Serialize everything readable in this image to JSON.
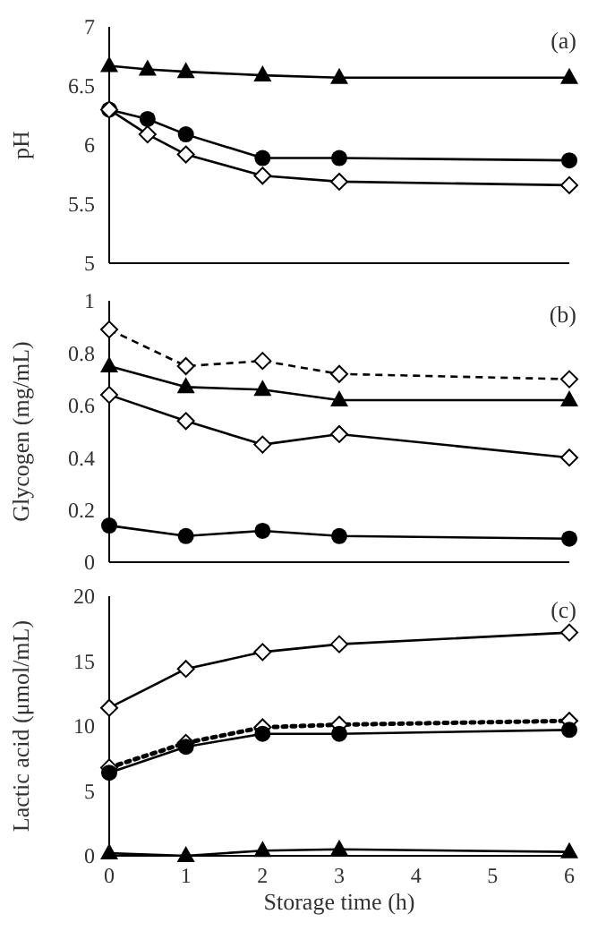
{
  "chart_data": [
    {
      "type": "line",
      "ylabel": "pH",
      "annotations": [
        "(a)"
      ],
      "xlim": [
        0,
        6
      ],
      "ylim": [
        5,
        7
      ],
      "yticks": [
        5,
        5.5,
        6,
        6.5,
        7
      ],
      "tick_labels": "y",
      "series": [
        {
          "color": "#000000",
          "marker": "triangle",
          "line_style": "solid",
          "x": [
            0,
            0.5,
            1,
            2,
            3,
            6
          ],
          "values": [
            6.67,
            6.64,
            6.62,
            6.59,
            6.57,
            6.57
          ]
        },
        {
          "color": "#000000",
          "marker": "circle",
          "line_style": "solid",
          "x": [
            0,
            0.5,
            1,
            2,
            3,
            6
          ],
          "values": [
            6.3,
            6.22,
            6.09,
            5.89,
            5.89,
            5.87
          ]
        },
        {
          "color": "#000000",
          "marker": "diamond",
          "line_style": "solid",
          "x": [
            0,
            0.5,
            1,
            2,
            3,
            6
          ],
          "values": [
            6.3,
            6.09,
            5.92,
            5.74,
            5.69,
            5.66
          ]
        }
      ]
    },
    {
      "type": "line",
      "ylabel": "Glycogen (mg/mL)",
      "annotations": [
        "(b)"
      ],
      "xlim": [
        0,
        6
      ],
      "ylim": [
        0,
        1
      ],
      "yticks": [
        0,
        0.2,
        0.4,
        0.6,
        0.8,
        1
      ],
      "tick_labels": "y",
      "series": [
        {
          "color": "#000000",
          "marker": "diamond",
          "line_style": "dashed",
          "x": [
            0,
            1,
            2,
            3,
            6
          ],
          "values": [
            0.89,
            0.75,
            0.77,
            0.72,
            0.7
          ]
        },
        {
          "color": "#000000",
          "marker": "triangle",
          "line_style": "solid",
          "x": [
            0,
            1,
            2,
            3,
            6
          ],
          "values": [
            0.75,
            0.67,
            0.66,
            0.62,
            0.62
          ]
        },
        {
          "color": "#000000",
          "marker": "diamond",
          "line_style": "solid",
          "x": [
            0,
            1,
            2,
            3,
            6
          ],
          "values": [
            0.64,
            0.54,
            0.45,
            0.49,
            0.4
          ]
        },
        {
          "color": "#000000",
          "marker": "circle",
          "line_style": "solid",
          "x": [
            0,
            1,
            2,
            3,
            6
          ],
          "values": [
            0.14,
            0.1,
            0.12,
            0.1,
            0.09
          ]
        }
      ]
    },
    {
      "type": "line",
      "ylabel": "Lactic acid (μmol/mL)",
      "xlabel": "Storage time (h)",
      "annotations": [
        "(c)"
      ],
      "xlim": [
        0,
        6
      ],
      "xticks": [
        0,
        1,
        2,
        3,
        4,
        5,
        6
      ],
      "ylim": [
        0,
        20
      ],
      "yticks": [
        0,
        5,
        10,
        15,
        20
      ],
      "series": [
        {
          "color": "#000000",
          "marker": "diamond",
          "line_style": "solid",
          "x": [
            0,
            1,
            2,
            3,
            6
          ],
          "values": [
            11.4,
            14.4,
            15.7,
            16.3,
            17.2
          ]
        },
        {
          "color": "#000000",
          "marker": "diamond",
          "line_style": "dotted",
          "x": [
            0,
            1,
            2,
            3,
            6
          ],
          "values": [
            6.8,
            8.7,
            9.9,
            10.1,
            10.4
          ]
        },
        {
          "color": "#000000",
          "marker": "circle",
          "line_style": "solid",
          "x": [
            0,
            1,
            2,
            3,
            6
          ],
          "values": [
            6.4,
            8.4,
            9.4,
            9.4,
            9.7
          ]
        },
        {
          "color": "#000000",
          "marker": "triangle",
          "line_style": "solid",
          "x": [
            0,
            1,
            2,
            3,
            6
          ],
          "values": [
            0.2,
            0,
            0.4,
            0.5,
            0.3
          ]
        }
      ]
    }
  ]
}
